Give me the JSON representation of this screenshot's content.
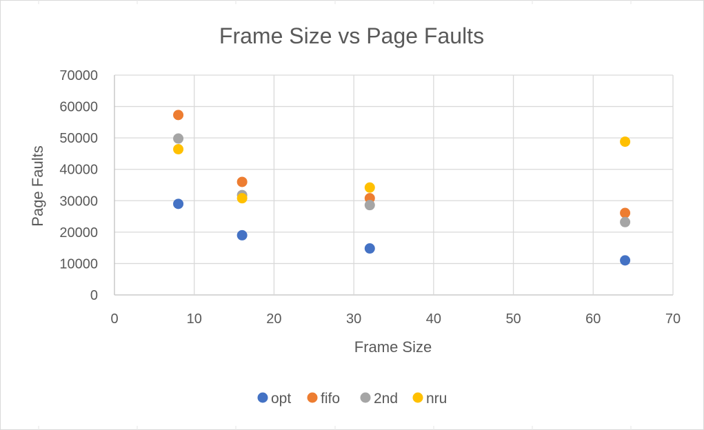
{
  "chart_data": {
    "type": "scatter",
    "title": "Frame Size vs Page Faults",
    "xlabel": "Frame Size",
    "ylabel": "Page Faults",
    "xlim": [
      0,
      70
    ],
    "ylim": [
      0,
      70000
    ],
    "x_ticks": [
      "0",
      "10",
      "20",
      "30",
      "40",
      "50",
      "60",
      "70"
    ],
    "y_ticks": [
      "0",
      "10000",
      "20000",
      "30000",
      "40000",
      "50000",
      "60000",
      "70000"
    ],
    "grid": true,
    "legend_position": "bottom",
    "series": [
      {
        "name": "opt",
        "color": "#4472C4",
        "x": [
          8,
          16,
          32,
          64
        ],
        "y": [
          29000,
          19000,
          14800,
          11000
        ]
      },
      {
        "name": "fifo",
        "color": "#ED7D31",
        "x": [
          8,
          16,
          32,
          64
        ],
        "y": [
          57300,
          36000,
          30800,
          26100
        ]
      },
      {
        "name": "2nd",
        "color": "#A5A5A5",
        "x": [
          8,
          16,
          32,
          64
        ],
        "y": [
          49800,
          31800,
          28600,
          23200
        ]
      },
      {
        "name": "nru",
        "color": "#FFC000",
        "x": [
          8,
          16,
          32,
          64
        ],
        "y": [
          46400,
          30800,
          34200,
          48800
        ]
      }
    ]
  }
}
